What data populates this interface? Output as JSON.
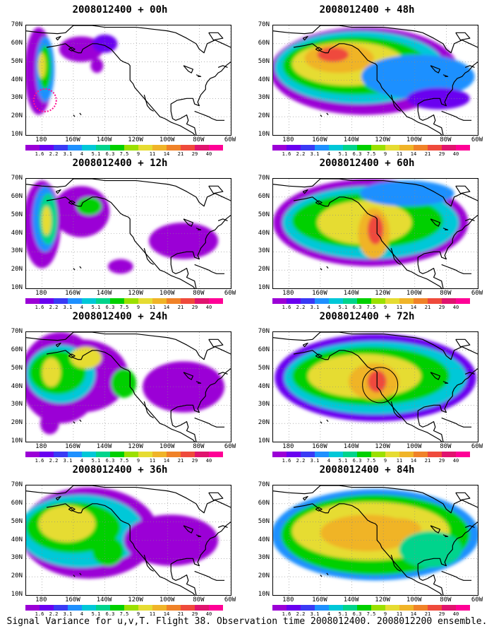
{
  "panels": [
    {
      "title": "2008012400 + 00h"
    },
    {
      "title": "2008012400 + 48h"
    },
    {
      "title": "2008012400 + 12h"
    },
    {
      "title": "2008012400 + 60h"
    },
    {
      "title": "2008012400 + 24h"
    },
    {
      "title": "2008012400 + 72h"
    },
    {
      "title": "2008012400 + 36h"
    },
    {
      "title": "2008012400 + 84h"
    }
  ],
  "lat_labels": [
    "70N",
    "60N",
    "50N",
    "40N",
    "30N",
    "20N",
    "10N"
  ],
  "lon_labels": [
    "180",
    "160W",
    "140W",
    "120W",
    "100W",
    "80W",
    "60W"
  ],
  "colorbar": {
    "labels": [
      "1.6",
      "2.2",
      "3.1",
      "4",
      "5.1",
      "6.3",
      "7.5",
      "9",
      "11",
      "14",
      "21",
      "29",
      "40"
    ],
    "colors": [
      "#9b00d6",
      "#6a00f0",
      "#3a3af5",
      "#1e90ff",
      "#00c8d8",
      "#00d48c",
      "#00d000",
      "#9be000",
      "#e6dc32",
      "#f0b428",
      "#f08228",
      "#ef4a3c",
      "#e0146e",
      "#ff0096"
    ]
  },
  "footer": "Signal Variance for u,v,T. Flight 38. Observation time 2008012400. 2008012200 ensemble."
}
